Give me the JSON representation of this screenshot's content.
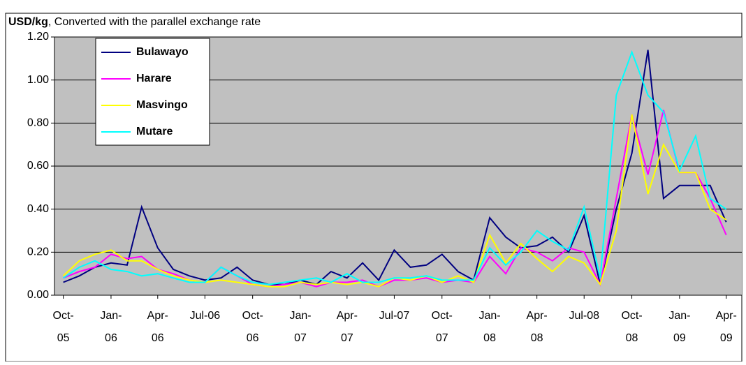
{
  "chart_data": {
    "type": "line",
    "y_label_unit": "USD/kg",
    "y_label": ", Converted with the parallel exchange rate",
    "x": [
      "2005-10",
      "2005-11",
      "2005-12",
      "2006-01",
      "2006-02",
      "2006-03",
      "2006-04",
      "2006-05",
      "2006-06",
      "2006-07",
      "2006-08",
      "2006-09",
      "2006-10",
      "2006-11",
      "2006-12",
      "2007-01",
      "2007-02",
      "2007-03",
      "2007-04",
      "2007-05",
      "2007-06",
      "2007-07",
      "2007-08",
      "2007-09",
      "2007-10",
      "2007-11",
      "2007-12",
      "2008-01",
      "2008-02",
      "2008-03",
      "2008-04",
      "2008-05",
      "2008-06",
      "2008-07",
      "2008-08",
      "2008-09",
      "2008-10",
      "2008-11",
      "2008-12",
      "2009-01",
      "2009-02",
      "2009-03",
      "2009-04"
    ],
    "series": [
      {
        "name": "Bulawayo",
        "color": "#000080",
        "values": [
          0.06,
          0.09,
          0.13,
          0.15,
          0.14,
          0.41,
          0.22,
          0.12,
          0.09,
          0.07,
          0.08,
          0.13,
          0.07,
          0.05,
          0.05,
          0.07,
          0.05,
          0.11,
          0.08,
          0.15,
          0.07,
          0.21,
          0.13,
          0.14,
          0.19,
          0.11,
          0.07,
          0.36,
          0.27,
          0.22,
          0.23,
          0.27,
          0.2,
          0.37,
          0.05,
          0.4,
          0.66,
          1.14,
          0.45,
          0.51,
          0.51,
          0.51,
          0.34
        ]
      },
      {
        "name": "Harare",
        "color": "#ff00ff",
        "values": [
          0.08,
          0.11,
          0.13,
          0.19,
          0.17,
          0.18,
          0.12,
          0.1,
          0.07,
          0.06,
          0.13,
          0.09,
          0.05,
          0.04,
          0.05,
          0.06,
          0.04,
          0.06,
          0.06,
          0.07,
          0.04,
          0.07,
          0.07,
          0.08,
          0.06,
          0.07,
          0.06,
          0.18,
          0.1,
          0.22,
          0.2,
          0.16,
          0.22,
          0.2,
          0.05,
          0.45,
          0.84,
          0.56,
          0.86,
          0.57,
          0.57,
          0.45,
          0.28
        ]
      },
      {
        "name": "Masvingo",
        "color": "#ffff00",
        "values": [
          0.09,
          0.16,
          0.19,
          0.21,
          0.16,
          0.16,
          0.12,
          0.09,
          0.07,
          0.06,
          0.07,
          0.06,
          0.05,
          0.04,
          0.04,
          0.06,
          0.05,
          0.06,
          0.05,
          0.06,
          0.04,
          0.08,
          0.07,
          0.09,
          0.06,
          0.09,
          0.06,
          0.28,
          0.15,
          0.24,
          0.17,
          0.11,
          0.18,
          0.15,
          0.05,
          0.3,
          0.84,
          0.47,
          0.7,
          0.57,
          0.57,
          0.4,
          0.35
        ]
      },
      {
        "name": "Mutare",
        "color": "#00ffff",
        "values": [
          0.08,
          0.13,
          0.16,
          0.12,
          0.11,
          0.09,
          0.1,
          0.08,
          0.06,
          0.06,
          0.13,
          0.09,
          0.06,
          0.05,
          0.06,
          0.07,
          0.08,
          0.06,
          0.1,
          0.06,
          0.06,
          0.08,
          0.08,
          0.09,
          0.07,
          0.07,
          0.07,
          0.22,
          0.14,
          0.2,
          0.3,
          0.25,
          0.21,
          0.41,
          0.08,
          0.93,
          1.13,
          0.93,
          0.85,
          0.58,
          0.74,
          0.45,
          0.4
        ]
      }
    ],
    "xlim": [
      "2005-09-14",
      "2009-05-01"
    ],
    "xticks": [
      {
        "value": "2005-10",
        "label": "Oct-\n05"
      },
      {
        "value": "2006-01",
        "label": "Jan-\n06"
      },
      {
        "value": "2006-04",
        "label": "Apr-\n06"
      },
      {
        "value": "2006-07",
        "label": "Jul-06"
      },
      {
        "value": "2006-10",
        "label": "Oct-\n06"
      },
      {
        "value": "2007-01",
        "label": "Jan-\n07"
      },
      {
        "value": "2007-04",
        "label": "Apr-\n07"
      },
      {
        "value": "2007-07",
        "label": "Jul-07"
      },
      {
        "value": "2007-10",
        "label": "Oct-\n07"
      },
      {
        "value": "2008-01",
        "label": "Jan-\n08"
      },
      {
        "value": "2008-04",
        "label": "Apr-\n08"
      },
      {
        "value": "2008-07",
        "label": "Jul-08"
      },
      {
        "value": "2008-10",
        "label": "Oct-\n08"
      },
      {
        "value": "2009-01",
        "label": "Jan-\n09"
      },
      {
        "value": "2009-04",
        "label": "Apr-\n09"
      }
    ],
    "ylim": [
      0,
      1.2
    ],
    "yticks": [
      {
        "value": 0,
        "label": "0.00"
      },
      {
        "value": 0.2,
        "label": "0.20"
      },
      {
        "value": 0.4,
        "label": "0.40"
      },
      {
        "value": 0.6,
        "label": "0.60"
      },
      {
        "value": 0.8,
        "label": "0.80"
      },
      {
        "value": 1,
        "label": "1.00"
      },
      {
        "value": 1.2,
        "label": "1.20"
      }
    ],
    "grid": true,
    "legend": "upper left"
  }
}
